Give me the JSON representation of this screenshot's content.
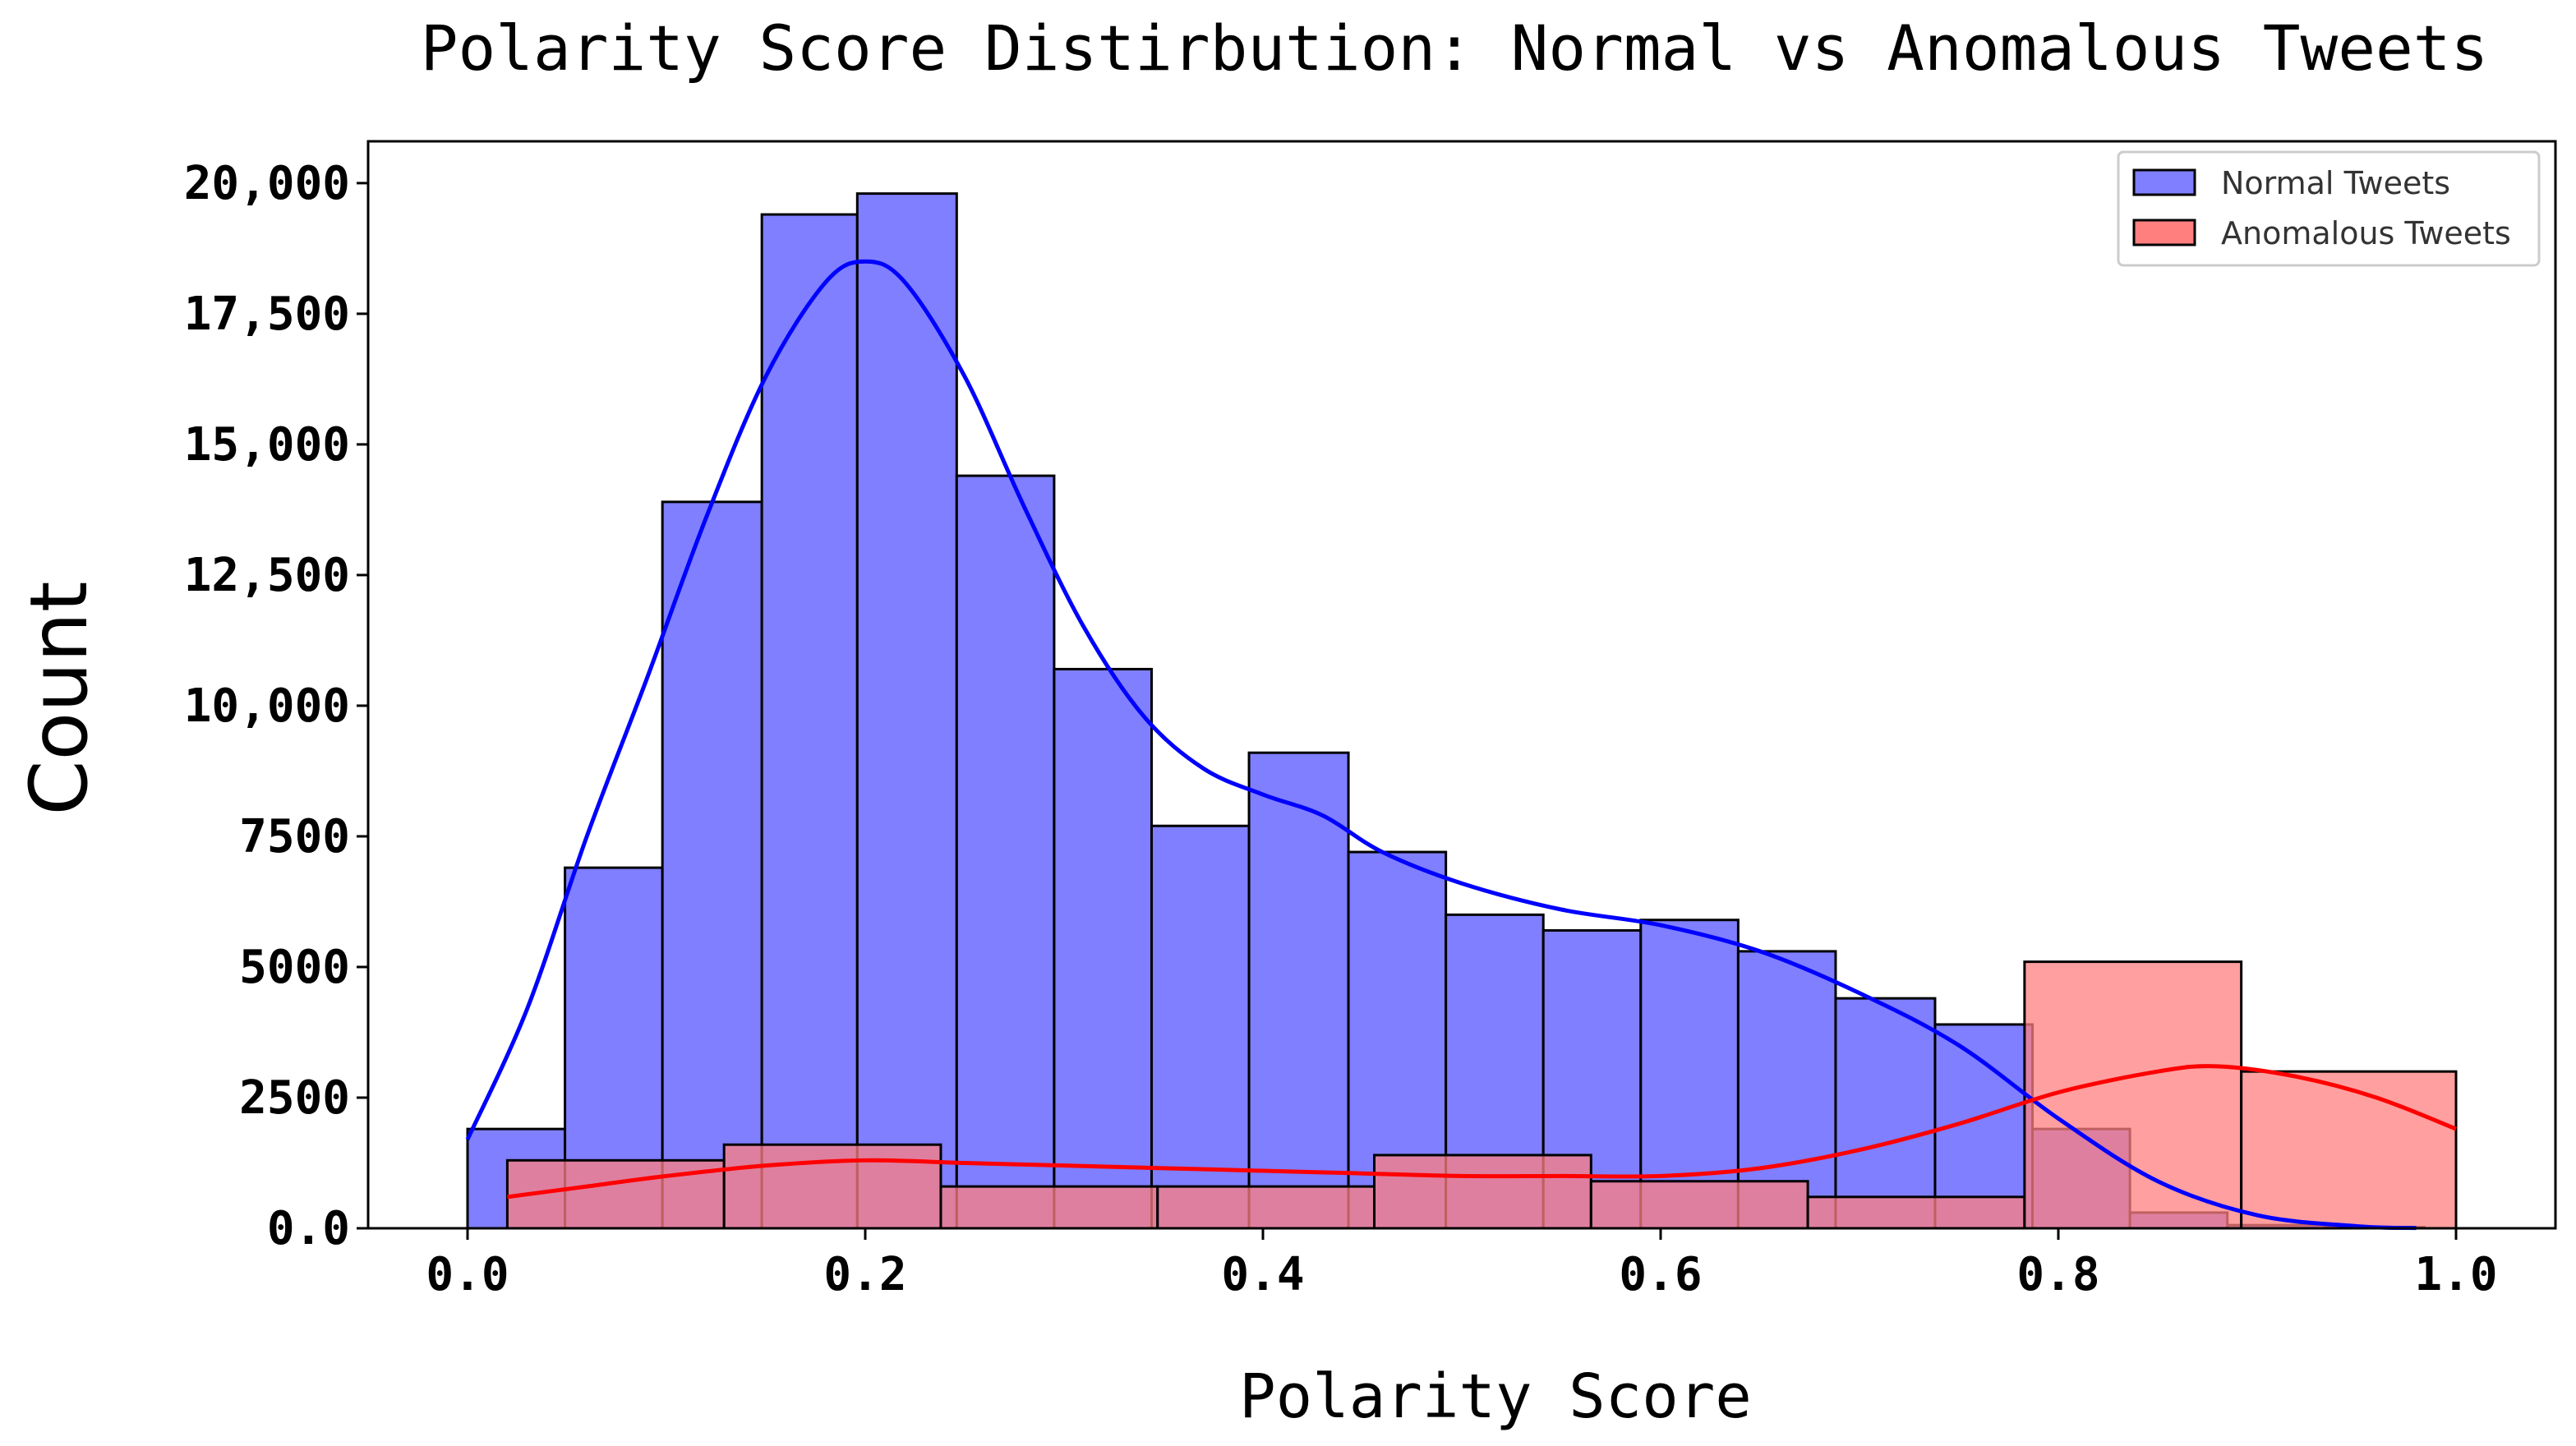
{
  "chart_data": {
    "type": "bar",
    "title": "Polarity Score Distirbution: Normal vs Anomalous Tweets",
    "xlabel": "Polarity Score",
    "ylabel": "Count",
    "xlim": [
      -0.05,
      1.05
    ],
    "ylim": [
      0,
      20800
    ],
    "x_ticks": [
      {
        "value": 0.0,
        "label": "0.0"
      },
      {
        "value": 0.2,
        "label": "0.2"
      },
      {
        "value": 0.4,
        "label": "0.4"
      },
      {
        "value": 0.6,
        "label": "0.6"
      },
      {
        "value": 0.8,
        "label": "0.8"
      },
      {
        "value": 1.0,
        "label": "1.0"
      }
    ],
    "y_ticks": [
      {
        "value": 0,
        "label": "0.0"
      },
      {
        "value": 2500,
        "label": "2500"
      },
      {
        "value": 5000,
        "label": "5000"
      },
      {
        "value": 7500,
        "label": "7500"
      },
      {
        "value": 10000,
        "label": "10,000"
      },
      {
        "value": 12500,
        "label": "12,500"
      },
      {
        "value": 15000,
        "label": "15,000"
      },
      {
        "value": 17500,
        "label": "17,500"
      },
      {
        "value": 20000,
        "label": "20,000"
      }
    ],
    "grid": false,
    "legend_position": "top-right",
    "series": [
      {
        "name": "Normal Tweets",
        "color": "#0000ff",
        "fill_color": "#7f7fff",
        "bins": [
          [
            0.0,
            0.049,
            1900
          ],
          [
            0.049,
            0.098,
            6900
          ],
          [
            0.098,
            0.148,
            13900
          ],
          [
            0.148,
            0.196,
            19400
          ],
          [
            0.196,
            0.246,
            19800
          ],
          [
            0.246,
            0.295,
            14400
          ],
          [
            0.295,
            0.344,
            10700
          ],
          [
            0.344,
            0.393,
            7700
          ],
          [
            0.393,
            0.443,
            9100
          ],
          [
            0.443,
            0.492,
            7200
          ],
          [
            0.492,
            0.541,
            6000
          ],
          [
            0.541,
            0.59,
            5700
          ],
          [
            0.59,
            0.639,
            5900
          ],
          [
            0.639,
            0.688,
            5300
          ],
          [
            0.688,
            0.738,
            4400
          ],
          [
            0.738,
            0.787,
            3900
          ],
          [
            0.787,
            0.836,
            1900
          ],
          [
            0.836,
            0.885,
            300
          ],
          [
            0.885,
            0.934,
            60
          ],
          [
            0.934,
            0.984,
            20
          ]
        ],
        "kde": [
          [
            0.0,
            1700
          ],
          [
            0.03,
            4200
          ],
          [
            0.06,
            7500
          ],
          [
            0.09,
            10500
          ],
          [
            0.12,
            13600
          ],
          [
            0.15,
            16300
          ],
          [
            0.18,
            18100
          ],
          [
            0.2,
            18500
          ],
          [
            0.22,
            18100
          ],
          [
            0.25,
            16300
          ],
          [
            0.28,
            13800
          ],
          [
            0.31,
            11500
          ],
          [
            0.34,
            9800
          ],
          [
            0.37,
            8800
          ],
          [
            0.4,
            8300
          ],
          [
            0.43,
            7900
          ],
          [
            0.46,
            7200
          ],
          [
            0.5,
            6600
          ],
          [
            0.55,
            6100
          ],
          [
            0.6,
            5800
          ],
          [
            0.65,
            5300
          ],
          [
            0.7,
            4500
          ],
          [
            0.75,
            3500
          ],
          [
            0.8,
            2100
          ],
          [
            0.85,
            900
          ],
          [
            0.9,
            250
          ],
          [
            0.95,
            40
          ],
          [
            0.98,
            5
          ]
        ]
      },
      {
        "name": "Anomalous Tweets",
        "color": "#ff0000",
        "fill_color": "#ff7f7f",
        "bins": [
          [
            0.02,
            0.129,
            1300
          ],
          [
            0.129,
            0.238,
            1600
          ],
          [
            0.238,
            0.347,
            800
          ],
          [
            0.347,
            0.456,
            800
          ],
          [
            0.456,
            0.565,
            1400
          ],
          [
            0.565,
            0.674,
            900
          ],
          [
            0.674,
            0.783,
            600
          ],
          [
            0.783,
            0.892,
            5100
          ],
          [
            0.892,
            1.0,
            3000
          ]
        ],
        "kde": [
          [
            0.02,
            600
          ],
          [
            0.06,
            800
          ],
          [
            0.1,
            1000
          ],
          [
            0.15,
            1200
          ],
          [
            0.2,
            1300
          ],
          [
            0.25,
            1250
          ],
          [
            0.3,
            1200
          ],
          [
            0.35,
            1150
          ],
          [
            0.4,
            1100
          ],
          [
            0.45,
            1050
          ],
          [
            0.5,
            1000
          ],
          [
            0.55,
            1000
          ],
          [
            0.6,
            1000
          ],
          [
            0.65,
            1150
          ],
          [
            0.7,
            1500
          ],
          [
            0.75,
            2000
          ],
          [
            0.8,
            2600
          ],
          [
            0.85,
            3000
          ],
          [
            0.88,
            3100
          ],
          [
            0.92,
            2900
          ],
          [
            0.96,
            2500
          ],
          [
            1.0,
            1900
          ]
        ]
      }
    ]
  }
}
